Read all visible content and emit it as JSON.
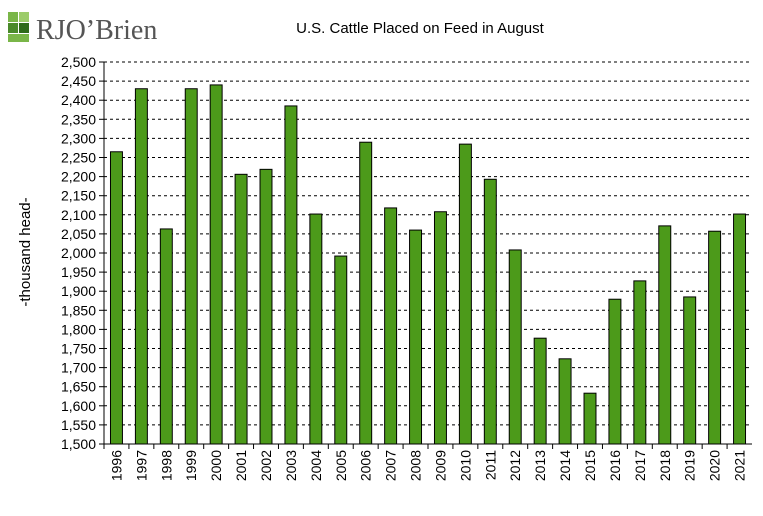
{
  "logo": {
    "text": "RJO’Brien",
    "colors": [
      "#7ab648",
      "#4a8a2a",
      "#2f6b1a"
    ]
  },
  "chart_data": {
    "type": "bar",
    "title": "U.S. Cattle Placed on Feed in August",
    "xlabel": "",
    "ylabel": "-thousand head-",
    "ylim": [
      1500,
      2500
    ],
    "ytick_step": 50,
    "grid": "horizontal-dashed",
    "bar_color": "#4c9a1a",
    "categories": [
      "1996",
      "1997",
      "1998",
      "1999",
      "2000",
      "2001",
      "2002",
      "2003",
      "2004",
      "2005",
      "2006",
      "2007",
      "2008",
      "2009",
      "2010",
      "2011",
      "2012",
      "2013",
      "2014",
      "2015",
      "2016",
      "2017",
      "2018",
      "2019",
      "2020",
      "2021"
    ],
    "values": [
      2265,
      2430,
      2063,
      2430,
      2440,
      2206,
      2219,
      2385,
      2102,
      1992,
      2290,
      2118,
      2060,
      2108,
      2285,
      2193,
      2008,
      1777,
      1723,
      1633,
      1879,
      1927,
      2071,
      1885,
      2057,
      2102
    ]
  }
}
